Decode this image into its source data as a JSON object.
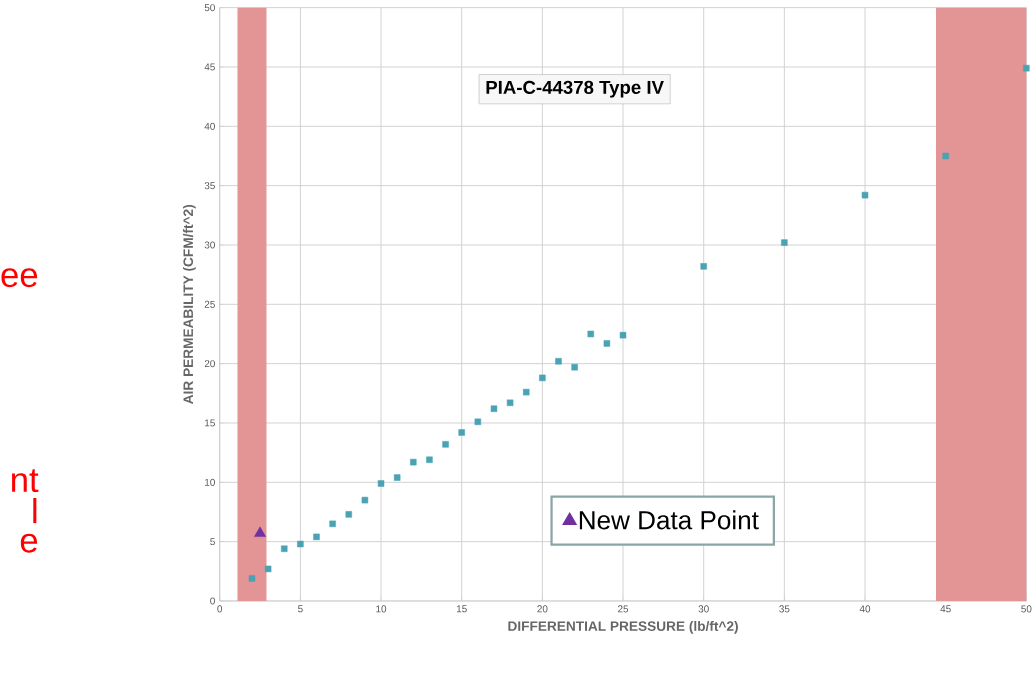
{
  "chart_data": {
    "type": "scatter",
    "title": "PIA-C-44378 Type IV",
    "xlabel": "DIFFERENTIAL PRESSURE (lb/ft^2)",
    "ylabel": "AIR PERMEABILITY  (CFM/ft^2)",
    "annotations": [
      "ee",
      "nt",
      "l",
      "e"
    ],
    "series": [
      {
        "color": "#4aa3b5",
        "marker": "square",
        "x": [
          2,
          3,
          4,
          5,
          6,
          7,
          8,
          9,
          10,
          11,
          12,
          13,
          14,
          15,
          16,
          17,
          18,
          19,
          20,
          21,
          22,
          23,
          24,
          25,
          30,
          35,
          40,
          45,
          50
        ],
        "values": [
          1.9,
          2.7,
          4.4,
          4.8,
          5.4,
          6.5,
          7.3,
          8.5,
          9.9,
          10.4,
          11.7,
          11.9,
          13.2,
          14.2,
          15.1,
          16.2,
          16.7,
          17.6,
          18.8,
          20.2,
          19.7,
          22.5,
          21.7,
          22.4,
          28.2,
          30.2,
          34.2,
          37.5,
          44.9
        ]
      },
      {
        "name": "New Data Point",
        "color": "#7030a0",
        "marker": "triangle",
        "x": [
          2.5
        ],
        "values": [
          5.7
        ]
      }
    ],
    "bands": [
      {
        "axis": "x",
        "from": 1.1,
        "to": 2.9,
        "color": "#e39494"
      },
      {
        "axis": "x",
        "from": 44.4,
        "to": 50,
        "color": "#e39494"
      }
    ],
    "xlim": [
      0,
      50
    ],
    "ylim": [
      0,
      50
    ],
    "xticks": [
      0,
      5,
      10,
      15,
      20,
      25,
      30,
      35,
      40,
      45,
      50
    ],
    "yticks": [
      0,
      5,
      10,
      15,
      20,
      25,
      30,
      35,
      40,
      45,
      50
    ],
    "grid": true,
    "legend": "bottom"
  }
}
